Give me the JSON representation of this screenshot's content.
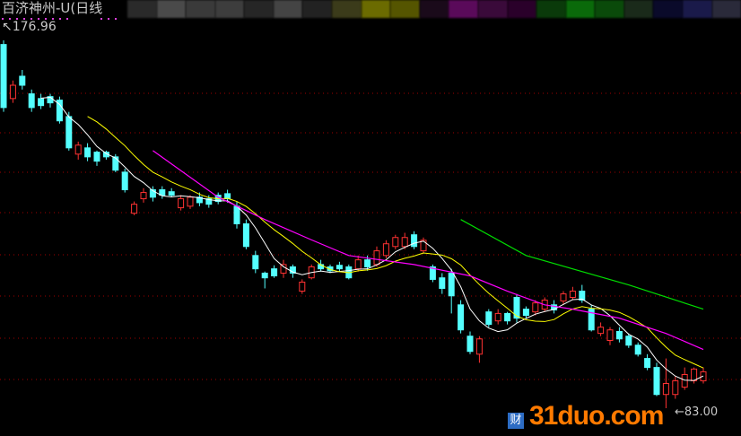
{
  "header": {
    "title": "百济神州-U(日线",
    "legend_block_colors": [
      "#2a2a2a",
      "#4a4a4a",
      "#3a3a3a",
      "#3d3d3d",
      "#262626",
      "#444",
      "#222",
      "#3b3b1a",
      "#6b6b00",
      "#555500",
      "#1a0a1a",
      "#5a0a5a",
      "#3a0a3a",
      "#2a002a",
      "#0a3a0a",
      "#0a6a0a",
      "#0a4a0a",
      "#1a2a1a",
      "#0a0a2a",
      "#1a1a4a",
      "#2a2a3a"
    ]
  },
  "watermark": {
    "text": "31duo.com",
    "icon_text": "财"
  },
  "chart_data": {
    "type": "candlestick",
    "title": "",
    "max_label": "176.96",
    "min_label": "83.00",
    "ylim": [
      83.0,
      176.96
    ],
    "grid": "dotted horizontal red",
    "colors": {
      "up": "#ff3232",
      "down": "#54ffff",
      "ma5": "#ffffff",
      "ma10": "#ffff00",
      "ma_magenta": "#ff00ff",
      "ma_green": "#00dd00",
      "grid": "#a00000"
    },
    "candles_ohlc": [
      [
        175.9,
        176.96,
        158.7,
        159.8
      ],
      [
        162.1,
        166.7,
        161.0,
        165.5
      ],
      [
        167.8,
        169.4,
        164.4,
        165.5
      ],
      [
        163.3,
        164.4,
        158.7,
        159.8
      ],
      [
        162.1,
        163.3,
        159.4,
        160.3
      ],
      [
        162.6,
        163.3,
        159.8,
        161.0
      ],
      [
        161.7,
        162.6,
        155.7,
        156.4
      ],
      [
        157.5,
        158.7,
        148.8,
        149.5
      ],
      [
        147.9,
        151.1,
        146.5,
        150.2
      ],
      [
        149.5,
        150.7,
        146.1,
        147.2
      ],
      [
        148.4,
        148.8,
        144.9,
        146.1
      ],
      [
        148.4,
        148.8,
        146.5,
        147.2
      ],
      [
        147.2,
        147.9,
        143.3,
        143.8
      ],
      [
        143.3,
        144.2,
        138.1,
        138.8
      ],
      [
        132.8,
        135.8,
        132.3,
        135.1
      ],
      [
        136.5,
        139.2,
        135.5,
        138.1
      ],
      [
        138.8,
        139.7,
        135.8,
        136.9
      ],
      [
        138.8,
        139.7,
        136.5,
        137.4
      ],
      [
        138.3,
        139.2,
        136.9,
        137.4
      ],
      [
        134.2,
        137.4,
        133.5,
        136.5
      ],
      [
        134.6,
        137.4,
        133.9,
        136.9
      ],
      [
        136.9,
        138.1,
        134.6,
        135.5
      ],
      [
        136.5,
        137.4,
        134.2,
        135.1
      ],
      [
        137.4,
        138.1,
        135.1,
        135.8
      ],
      [
        137.8,
        138.8,
        135.5,
        136.5
      ],
      [
        134.6,
        135.8,
        128.9,
        130.1
      ],
      [
        130.1,
        131.2,
        123.6,
        124.3
      ],
      [
        122.0,
        123.2,
        117.5,
        118.6
      ],
      [
        117.5,
        117.9,
        113.6,
        116.3
      ],
      [
        118.6,
        119.5,
        116.3,
        116.8
      ],
      [
        117.5,
        120.9,
        116.3,
        119.7
      ],
      [
        119.1,
        119.7,
        116.3,
        117.5
      ],
      [
        112.9,
        115.9,
        112.2,
        115.2
      ],
      [
        116.3,
        119.7,
        115.9,
        119.1
      ],
      [
        119.7,
        120.9,
        117.9,
        118.6
      ],
      [
        119.1,
        119.7,
        117.5,
        118.1
      ],
      [
        119.5,
        120.4,
        117.9,
        118.6
      ],
      [
        119.1,
        119.7,
        115.9,
        116.3
      ],
      [
        118.6,
        122.0,
        117.9,
        120.9
      ],
      [
        120.9,
        122.0,
        118.1,
        119.1
      ],
      [
        119.7,
        124.3,
        119.1,
        123.2
      ],
      [
        122.0,
        125.9,
        121.3,
        125.0
      ],
      [
        124.3,
        127.3,
        123.6,
        126.6
      ],
      [
        124.3,
        127.8,
        123.6,
        126.6
      ],
      [
        127.3,
        128.2,
        123.6,
        124.3
      ],
      [
        123.2,
        126.6,
        122.5,
        125.9
      ],
      [
        119.1,
        119.7,
        115.2,
        115.9
      ],
      [
        116.3,
        117.5,
        112.2,
        113.6
      ],
      [
        117.5,
        118.6,
        107.2,
        111.7
      ],
      [
        109.4,
        110.6,
        102.1,
        103.0
      ],
      [
        101.4,
        102.6,
        96.8,
        97.5
      ],
      [
        96.8,
        101.4,
        94.6,
        100.7
      ],
      [
        107.6,
        108.3,
        103.7,
        104.4
      ],
      [
        105.3,
        108.3,
        104.4,
        107.2
      ],
      [
        107.2,
        107.6,
        104.4,
        105.3
      ],
      [
        111.3,
        112.2,
        104.9,
        106.0
      ],
      [
        108.3,
        109.0,
        106.0,
        106.7
      ],
      [
        107.6,
        110.6,
        106.7,
        109.9
      ],
      [
        108.3,
        111.3,
        107.6,
        110.6
      ],
      [
        109.4,
        110.6,
        107.2,
        108.1
      ],
      [
        110.4,
        112.9,
        109.4,
        112.2
      ],
      [
        111.3,
        114.0,
        110.6,
        112.9
      ],
      [
        112.9,
        114.5,
        109.9,
        110.6
      ],
      [
        108.3,
        109.4,
        102.6,
        103.0
      ],
      [
        102.1,
        104.9,
        101.4,
        103.7
      ],
      [
        100.3,
        103.7,
        99.1,
        103.0
      ],
      [
        102.6,
        103.7,
        99.8,
        100.7
      ],
      [
        101.4,
        102.1,
        98.4,
        99.1
      ],
      [
        99.1,
        99.8,
        96.2,
        96.8
      ],
      [
        95.7,
        96.8,
        92.7,
        93.4
      ],
      [
        93.4,
        94.6,
        86.1,
        86.5
      ],
      [
        86.5,
        95.7,
        83.0,
        89.3
      ],
      [
        86.5,
        91.1,
        85.4,
        90.0
      ],
      [
        88.4,
        93.4,
        87.7,
        91.6
      ],
      [
        90.0,
        93.4,
        89.3,
        93.0
      ],
      [
        90.0,
        93.4,
        89.3,
        92.3
      ]
    ],
    "ma_magenta_points": [
      [
        16,
        148.8
      ],
      [
        23,
        136.9
      ],
      [
        28,
        131.2
      ],
      [
        33,
        126.0
      ],
      [
        37,
        122.0
      ],
      [
        44,
        119.7
      ],
      [
        50,
        116.8
      ],
      [
        54,
        112.9
      ],
      [
        58,
        109.4
      ],
      [
        61,
        108.3
      ],
      [
        66,
        106.0
      ],
      [
        71,
        102.1
      ],
      [
        75,
        98.0
      ]
    ],
    "ma_green_points": [
      [
        49,
        131.2
      ],
      [
        56,
        122.0
      ],
      [
        67,
        114.5
      ],
      [
        75,
        108.3
      ]
    ]
  }
}
